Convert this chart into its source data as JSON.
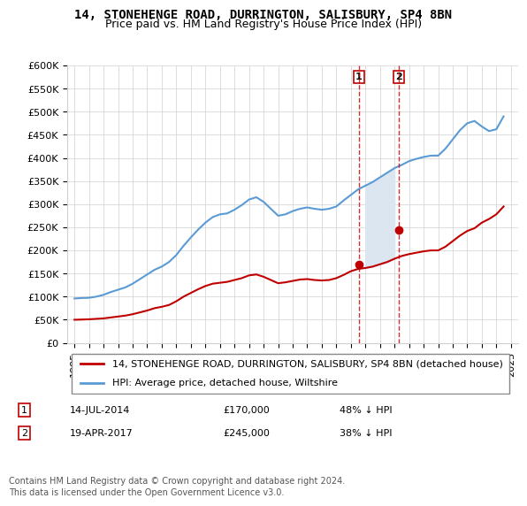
{
  "title": "14, STONEHENGE ROAD, DURRINGTON, SALISBURY, SP4 8BN",
  "subtitle": "Price paid vs. HM Land Registry's House Price Index (HPI)",
  "ylabel_ticks": [
    "£0",
    "£50K",
    "£100K",
    "£150K",
    "£200K",
    "£250K",
    "£300K",
    "£350K",
    "£400K",
    "£450K",
    "£500K",
    "£550K",
    "£600K"
  ],
  "ytick_values": [
    0,
    50000,
    100000,
    150000,
    200000,
    250000,
    300000,
    350000,
    400000,
    450000,
    500000,
    550000,
    600000
  ],
  "xlim_start": 1995,
  "xlim_end": 2025.5,
  "ylim_min": 0,
  "ylim_max": 600000,
  "hpi_years": [
    1995.0,
    1995.5,
    1996.0,
    1996.5,
    1997.0,
    1997.5,
    1998.0,
    1998.5,
    1999.0,
    1999.5,
    2000.0,
    2000.5,
    2001.0,
    2001.5,
    2002.0,
    2002.5,
    2003.0,
    2003.5,
    2004.0,
    2004.5,
    2005.0,
    2005.5,
    2006.0,
    2006.5,
    2007.0,
    2007.5,
    2008.0,
    2008.5,
    2009.0,
    2009.5,
    2010.0,
    2010.5,
    2011.0,
    2011.5,
    2012.0,
    2012.5,
    2013.0,
    2013.5,
    2014.0,
    2014.5,
    2015.0,
    2015.5,
    2016.0,
    2016.5,
    2017.0,
    2017.5,
    2018.0,
    2018.5,
    2019.0,
    2019.5,
    2020.0,
    2020.5,
    2021.0,
    2021.5,
    2022.0,
    2022.5,
    2023.0,
    2023.5,
    2024.0,
    2024.5
  ],
  "hpi_values": [
    96000,
    97000,
    97500,
    100000,
    104000,
    110000,
    115000,
    120000,
    128000,
    138000,
    148000,
    158000,
    165000,
    175000,
    190000,
    210000,
    228000,
    245000,
    260000,
    272000,
    278000,
    280000,
    288000,
    298000,
    310000,
    315000,
    305000,
    290000,
    275000,
    278000,
    285000,
    290000,
    293000,
    290000,
    288000,
    290000,
    295000,
    308000,
    320000,
    332000,
    340000,
    348000,
    358000,
    368000,
    378000,
    385000,
    393000,
    398000,
    402000,
    405000,
    405000,
    420000,
    440000,
    460000,
    475000,
    480000,
    468000,
    458000,
    462000,
    490000
  ],
  "property_years": [
    1995.0,
    1995.5,
    1996.0,
    1996.5,
    1997.0,
    1997.5,
    1998.0,
    1998.5,
    1999.0,
    1999.5,
    2000.0,
    2000.5,
    2001.0,
    2001.5,
    2002.0,
    2002.5,
    2003.0,
    2003.5,
    2004.0,
    2004.5,
    2005.0,
    2005.5,
    2006.0,
    2006.5,
    2007.0,
    2007.5,
    2008.0,
    2008.5,
    2009.0,
    2009.5,
    2010.0,
    2010.5,
    2011.0,
    2011.5,
    2012.0,
    2012.5,
    2013.0,
    2013.5,
    2014.0,
    2014.5,
    2015.0,
    2015.5,
    2016.0,
    2016.5,
    2017.0,
    2017.5,
    2018.0,
    2018.5,
    2019.0,
    2019.5,
    2020.0,
    2020.5,
    2021.0,
    2021.5,
    2022.0,
    2022.5,
    2023.0,
    2023.5,
    2024.0,
    2024.5
  ],
  "property_values": [
    50000,
    50500,
    51000,
    52000,
    53000,
    55000,
    57000,
    59000,
    62000,
    66000,
    70000,
    75000,
    78000,
    82000,
    90000,
    100000,
    108000,
    116000,
    123000,
    128000,
    130000,
    132000,
    136000,
    140000,
    146000,
    148000,
    143000,
    136000,
    129000,
    131000,
    134000,
    137000,
    138000,
    136000,
    135000,
    136000,
    140000,
    147000,
    155000,
    160000,
    162000,
    165000,
    170000,
    175000,
    182000,
    188000,
    192000,
    195000,
    198000,
    200000,
    200000,
    208000,
    220000,
    232000,
    242000,
    248000,
    260000,
    268000,
    278000,
    295000
  ],
  "sale1_year": 2014.536,
  "sale1_price": 170000,
  "sale2_year": 2017.3,
  "sale2_price": 245000,
  "shade_x1": 2014.536,
  "shade_x2": 2017.3,
  "legend_line1": "14, STONEHENGE ROAD, DURRINGTON, SALISBURY, SP4 8BN (detached house)",
  "legend_line2": "HPI: Average price, detached house, Wiltshire",
  "annotation1_label": "1",
  "annotation1_date": "14-JUL-2014",
  "annotation1_price": "£170,000",
  "annotation1_pct": "48% ↓ HPI",
  "annotation2_label": "2",
  "annotation2_date": "19-APR-2017",
  "annotation2_price": "£245,000",
  "annotation2_pct": "38% ↓ HPI",
  "footer": "Contains HM Land Registry data © Crown copyright and database right 2024.\nThis data is licensed under the Open Government Licence v3.0.",
  "hpi_color": "#5b9bd5",
  "property_color": "#c00000",
  "shade_color": "#dce6f1",
  "marker_color": "#c00000",
  "vline_color": "#c00000",
  "grid_color": "#d0d0d0",
  "background_color": "#ffffff",
  "title_fontsize": 10,
  "subtitle_fontsize": 9,
  "tick_fontsize": 8,
  "legend_fontsize": 8,
  "annotation_fontsize": 8,
  "footer_fontsize": 7
}
